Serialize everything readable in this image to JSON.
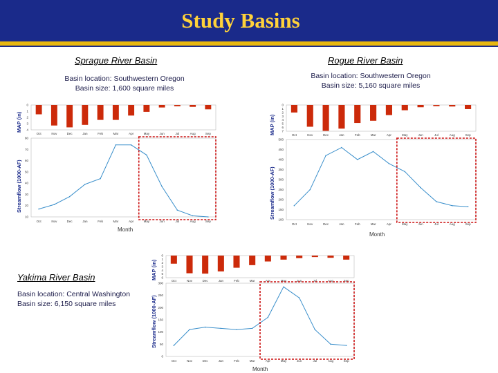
{
  "header": {
    "title": "Study Basins"
  },
  "colors": {
    "header_bg": "#1a2a8a",
    "title": "#ffd23a",
    "stripe": "#e8b810",
    "bar": "#cc2a0a",
    "line": "#3a8fcb",
    "highlight": "#cc1111"
  },
  "months": [
    "Oct",
    "Nov",
    "Dec",
    "Jan",
    "Feb",
    "Mar",
    "Apr",
    "May",
    "Jun",
    "Jul",
    "Aug",
    "Sep"
  ],
  "basins": {
    "sprague": {
      "title": "Sprague River Basin",
      "location": "Basin location: Southwestern Oregon",
      "size": "Basin size: 1,600 square miles",
      "map_label": "MAP (in)",
      "flow_label": "Streamflow (1000-AF)",
      "month_label": "Month",
      "map_ticks": [
        "0",
        "1",
        "2",
        "3",
        "4"
      ],
      "flow_ticks": [
        "10",
        "20",
        "30",
        "40",
        "50",
        "60",
        "70",
        "80"
      ],
      "map_values": [
        1.5,
        3.3,
        3.6,
        3.2,
        2.4,
        2.4,
        1.7,
        1.1,
        0.4,
        0.2,
        0.3,
        0.7
      ],
      "flow_values": [
        17,
        21,
        28,
        39,
        44,
        74,
        74,
        65,
        37,
        16,
        11,
        10
      ],
      "map_max": 4,
      "flow_range": [
        10,
        80
      ],
      "highlight": [
        7,
        11
      ]
    },
    "rogue": {
      "title": "Rogue River Basin",
      "location": "Basin location: Southwestern Oregon",
      "size": "Basin size: 5,160 square miles",
      "map_label": "MAP (in)",
      "flow_label": "Streamflow (1000-AF)",
      "month_label": "Month",
      "map_ticks": [
        "0",
        "1",
        "2",
        "3",
        "4",
        "5",
        "6",
        "7"
      ],
      "flow_ticks": [
        "100",
        "150",
        "200",
        "250",
        "300",
        "350",
        "400",
        "450",
        "500"
      ],
      "map_values": [
        2.0,
        5.8,
        6.9,
        6.3,
        4.8,
        4.2,
        2.7,
        1.4,
        0.6,
        0.3,
        0.4,
        1.1
      ],
      "flow_values": [
        170,
        250,
        420,
        460,
        400,
        440,
        380,
        340,
        260,
        190,
        170,
        165
      ],
      "map_max": 7,
      "flow_range": [
        100,
        500
      ],
      "highlight": [
        7,
        11
      ]
    },
    "yakima": {
      "title": "Yakima River Basin",
      "location": "Basin location: Central Washington",
      "size": "Basin size: 6,150 square miles",
      "map_label": "MAP (in)",
      "flow_label": "Streamflow (1000-AF)",
      "month_label": "Month",
      "map_ticks": [
        "0",
        "1",
        "2",
        "3",
        "4",
        "5",
        "6"
      ],
      "flow_ticks": [
        "0",
        "50",
        "100",
        "150",
        "200",
        "250",
        "300"
      ],
      "map_values": [
        2.2,
        4.8,
        4.9,
        4.3,
        3.3,
        2.6,
        1.6,
        1.1,
        0.7,
        0.4,
        0.6,
        1.1
      ],
      "flow_values": [
        45,
        110,
        120,
        115,
        110,
        115,
        160,
        285,
        240,
        110,
        50,
        45
      ],
      "map_max": 6,
      "flow_range": [
        0,
        300
      ],
      "highlight": [
        6,
        11
      ]
    }
  }
}
